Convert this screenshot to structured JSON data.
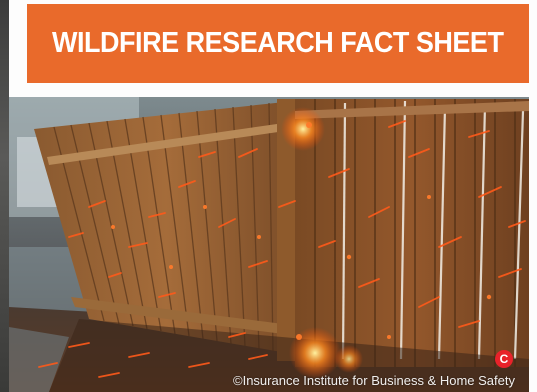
{
  "header": {
    "title": "WILDFIRE RESEARCH FACT SHEET"
  },
  "photo": {
    "subject": "wood fence exposed to ember shower",
    "credit": "©Insurance Institute for Business & Home Safety",
    "badge": "C"
  },
  "colors": {
    "banner": "#e96a2b",
    "badge": "#e8222a",
    "ember": "#ff5a1a"
  }
}
